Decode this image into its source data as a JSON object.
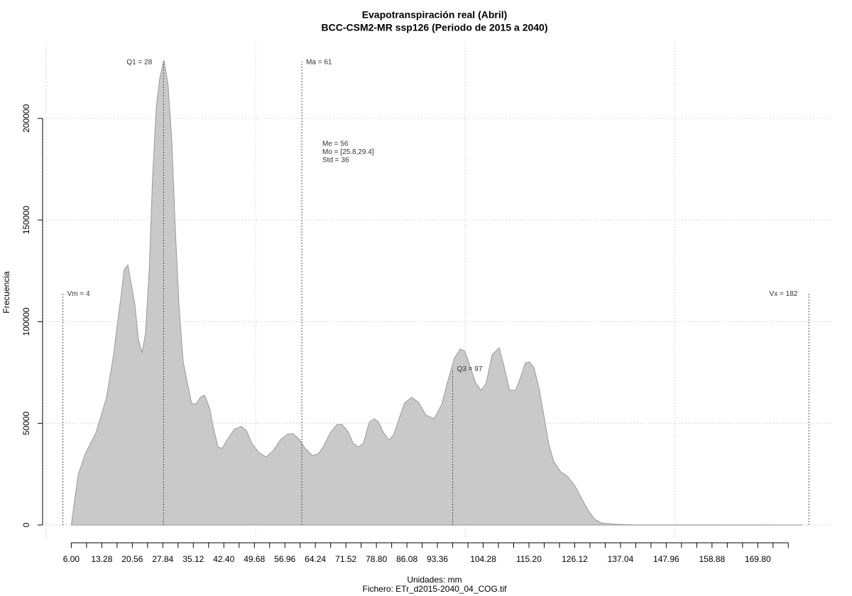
{
  "chart_data": {
    "type": "area",
    "title": "Evapotranspiración real (Abril)",
    "subtitle": "BCC-CSM2-MR ssp126 (Periodo de 2015 a 2040)",
    "x_label": "Unidades: mm",
    "caption": "Fichero: ETr_d2015-2040_04_COG.tif",
    "y_label": "Frecuencia",
    "x": [
      6.0,
      7.6,
      9.3,
      11.9,
      14.4,
      16.1,
      16.9,
      17.8,
      18.6,
      19.5,
      20.3,
      21.2,
      22.0,
      22.9,
      23.7,
      24.6,
      25.4,
      26.3,
      27.1,
      28.1,
      29.1,
      30.0,
      30.8,
      31.7,
      32.7,
      33.9,
      34.7,
      35.7,
      36.8,
      37.8,
      39.0,
      39.8,
      41.0,
      42.0,
      43.2,
      44.9,
      46.6,
      47.8,
      49.1,
      50.8,
      52.5,
      54.2,
      55.9,
      57.6,
      58.9,
      60.5,
      61.8,
      63.5,
      64.9,
      66.1,
      67.8,
      69.4,
      70.6,
      72.0,
      73.3,
      74.5,
      75.7,
      77.1,
      78.3,
      79.3,
      80.5,
      81.8,
      83.0,
      84.2,
      85.5,
      87.2,
      88.9,
      90.6,
      92.6,
      94.4,
      95.7,
      97.4,
      98.8,
      99.9,
      101.1,
      102.5,
      103.8,
      105.0,
      106.4,
      108.1,
      109.2,
      110.6,
      112.0,
      113.0,
      114.3,
      115.3,
      116.4,
      117.7,
      118.9,
      119.9,
      121.1,
      122.8,
      124.5,
      126.2,
      127.5,
      129.2,
      130.9,
      132.6,
      135.5,
      140.6,
      180.4
    ],
    "values": [
      0,
      24400,
      35000,
      45400,
      62800,
      83700,
      97700,
      111600,
      125600,
      128000,
      118600,
      108000,
      91400,
      84800,
      94200,
      125600,
      171000,
      205900,
      219800,
      228600,
      216300,
      188400,
      146500,
      108200,
      80200,
      68000,
      60000,
      59300,
      62800,
      63900,
      57600,
      48900,
      38400,
      37700,
      41900,
      47100,
      48500,
      46400,
      40100,
      35600,
      33500,
      36600,
      41900,
      44700,
      45000,
      41900,
      37700,
      34200,
      34900,
      38400,
      45400,
      49500,
      49500,
      46000,
      40100,
      38400,
      40100,
      50600,
      52300,
      50600,
      45400,
      41900,
      44700,
      52300,
      60000,
      62800,
      60300,
      54100,
      52300,
      59300,
      69800,
      82000,
      86600,
      85500,
      78500,
      69800,
      66300,
      69800,
      83700,
      87200,
      78500,
      66300,
      66300,
      71500,
      79600,
      80200,
      77400,
      66300,
      52300,
      40100,
      31400,
      26200,
      23700,
      19200,
      14000,
      7700,
      2800,
      1000,
      350,
      100,
      0
    ],
    "color": "#c9c9c9",
    "line_color": "#9a9a9a",
    "xlim": [
      0,
      187.2
    ],
    "ylim": [
      -6300,
      237300
    ],
    "xticks": [
      {
        "value": 6,
        "label": "6.00"
      },
      13.28,
      20.56,
      27.84,
      35.12,
      {
        "value": 42.4,
        "label": "42.40"
      },
      49.68,
      56.96,
      64.24,
      71.52,
      {
        "value": 78.8,
        "label": "78.80"
      },
      86.08,
      93.36,
      104.28,
      {
        "value": 115.2,
        "label": "115.20"
      },
      126.12,
      137.04,
      147.96,
      158.88,
      {
        "value": 169.8,
        "label": "169.80"
      }
    ],
    "xminorticks": [
      9.64,
      16.92,
      24.2,
      31.48,
      38.76,
      46.04,
      53.32,
      60.6,
      67.88,
      75.16,
      82.44,
      89.72,
      97,
      100.64,
      107.92,
      111.56,
      118.84,
      122.48,
      129.76,
      133.4,
      140.68,
      144.32,
      151.6,
      155.24,
      162.52,
      166.16,
      173.44,
      177.08
    ],
    "xgrid": [
      0,
      50,
      100,
      150
    ],
    "yticks": [
      0,
      50000,
      100000,
      150000,
      200000
    ],
    "grid": true,
    "annotations": [
      {
        "label": "Vm = 4",
        "x": 4,
        "y": 114000
      },
      {
        "label": "Q1 = 28",
        "x": 28,
        "y": 228000
      },
      {
        "label": "Ma = 61",
        "x": 61,
        "y": 228000
      },
      {
        "label": "Q3 = 97",
        "x": 97,
        "y": 77000
      },
      {
        "label": "Vx = 182",
        "x": 182,
        "y": 114000
      }
    ],
    "stats": [
      "Me = 56",
      "Mo = [25.8,29.4]",
      "Std = 36"
    ]
  }
}
